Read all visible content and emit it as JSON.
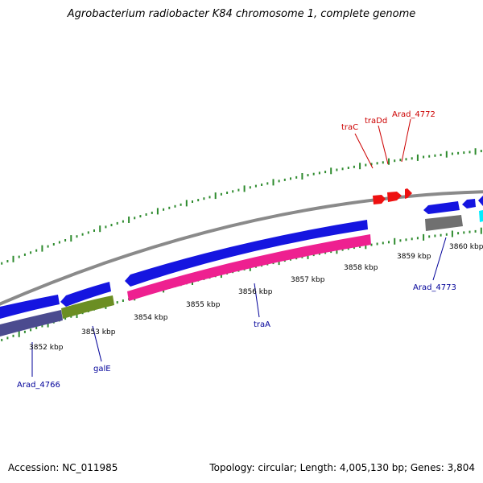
{
  "title": "Agrobacterium radiobacter K84 chromosome 1, complete genome",
  "footer": {
    "accession": "Accession: NC_011985",
    "summary": "Topology: circular; Length: 4,005,130 bp; Genes: 3,804"
  },
  "colors": {
    "backbone": "#8a8a8a",
    "minor_tick": "#2e8b2e",
    "red_gene": "#ee1111",
    "red_label": "#cc0000",
    "blue_gene": "#1515e0",
    "blue_label": "#000099",
    "pink_gene": "#ee2090",
    "olive_gene": "#6b8e23",
    "slate_gene": "#4b4b8f",
    "gray_gene": "#707070",
    "cyan_gene": "#00eeff"
  },
  "tick_labels": [
    "3852 kbp",
    "3853 kbp",
    "3854 kbp",
    "3855 kbp",
    "3856 kbp",
    "3857 kbp",
    "3858 kbp",
    "3859 kbp",
    "3860 kbp"
  ],
  "gene_labels": {
    "traC": "traC",
    "traDd": "traDd",
    "arad_4772": "Arad_4772",
    "arad_4773": "Arad_4773",
    "traA": "traA",
    "galE": "galE",
    "arad_4766": "Arad_4766"
  }
}
